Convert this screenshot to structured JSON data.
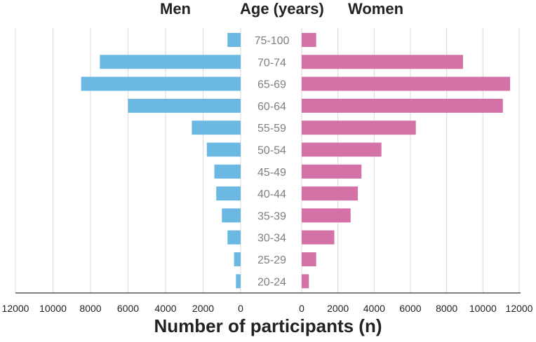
{
  "chart_data": {
    "type": "bar",
    "titles": {
      "left": "Men",
      "center": "Age (years)",
      "right": "Women"
    },
    "xlabel": "Number of participants (n)",
    "categories": [
      "75-100",
      "70-74",
      "65-69",
      "60-64",
      "55-59",
      "50-54",
      "45-49",
      "40-44",
      "35-39",
      "30-34",
      "25-29",
      "20-24"
    ],
    "series": [
      {
        "name": "Men",
        "color": "#6bb8e3",
        "values": [
          700,
          7500,
          8500,
          6000,
          2600,
          1800,
          1400,
          1300,
          1000,
          700,
          350,
          250
        ]
      },
      {
        "name": "Women",
        "color": "#d472a8",
        "values": [
          800,
          8900,
          11500,
          11100,
          6300,
          4400,
          3300,
          3100,
          2700,
          1800,
          800,
          400
        ]
      }
    ],
    "xlim": [
      0,
      12000
    ],
    "xticks": [
      "12000",
      "10000",
      "8000",
      "6000",
      "4000",
      "2000",
      "0",
      "0",
      "2000",
      "4000",
      "6000",
      "8000",
      "10000",
      "12000"
    ],
    "grid": true
  }
}
